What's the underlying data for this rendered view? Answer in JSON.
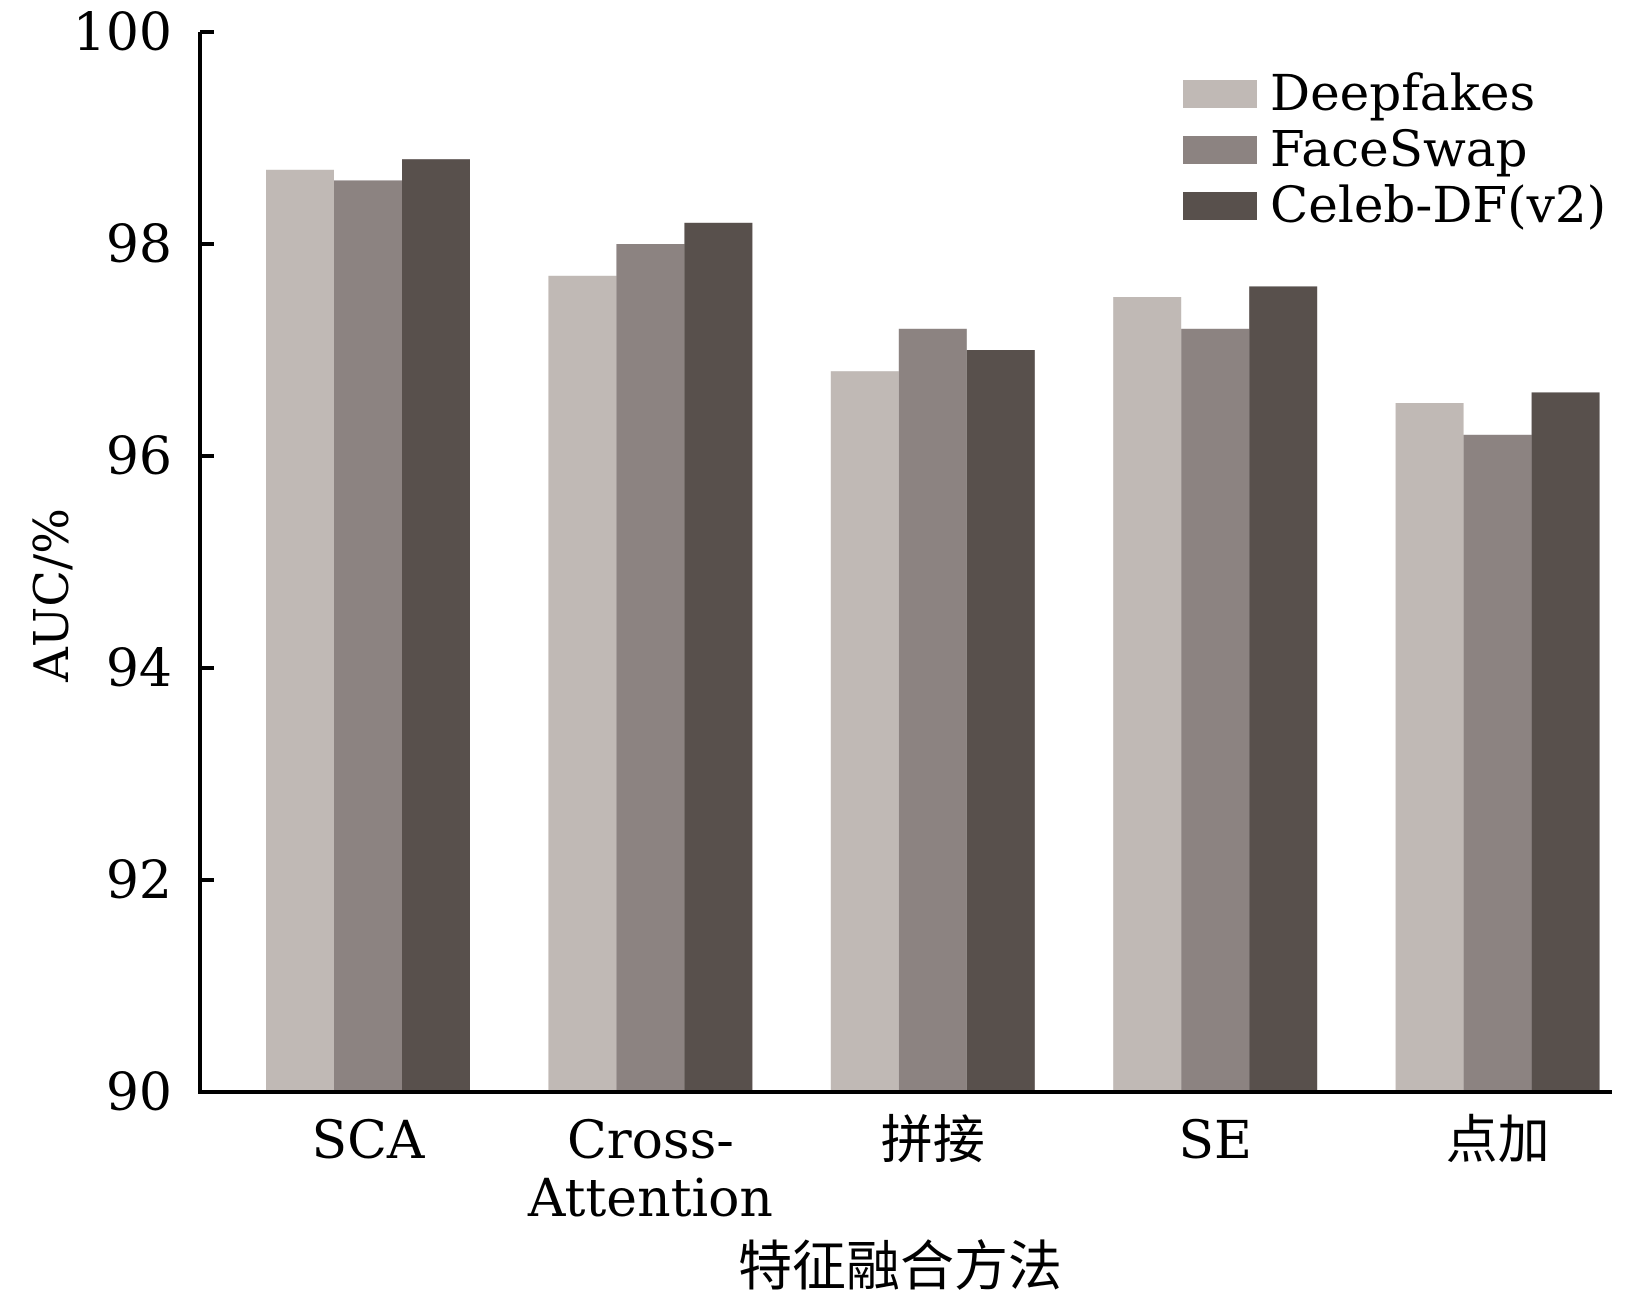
{
  "chart_data": {
    "type": "bar",
    "title": "",
    "xlabel": "特征融合方法",
    "ylabel": "AUC/%",
    "ylim": [
      90,
      100
    ],
    "yticks": [
      "90",
      "92",
      "94",
      "96",
      "98",
      "100"
    ],
    "categories": [
      "SCA",
      "Cross-Attention",
      "拼接",
      "SE",
      "点加"
    ],
    "category_label_lines": [
      [
        "SCA"
      ],
      [
        "Cross-",
        "Attention"
      ],
      [
        "拼接"
      ],
      [
        "SE"
      ],
      [
        "点加"
      ]
    ],
    "series": [
      {
        "name": "Deepfakes",
        "color": "#c0b9b5",
        "values": [
          98.7,
          97.7,
          96.8,
          97.5,
          96.5
        ]
      },
      {
        "name": "FaceSwap",
        "color": "#8c8381",
        "values": [
          98.6,
          98.0,
          97.2,
          97.2,
          96.2
        ]
      },
      {
        "name": "Celeb-DF(v2)",
        "color": "#58504c",
        "values": [
          98.8,
          98.2,
          97.0,
          97.6,
          96.6
        ]
      }
    ],
    "grid": false,
    "legend_position": "top-right"
  }
}
